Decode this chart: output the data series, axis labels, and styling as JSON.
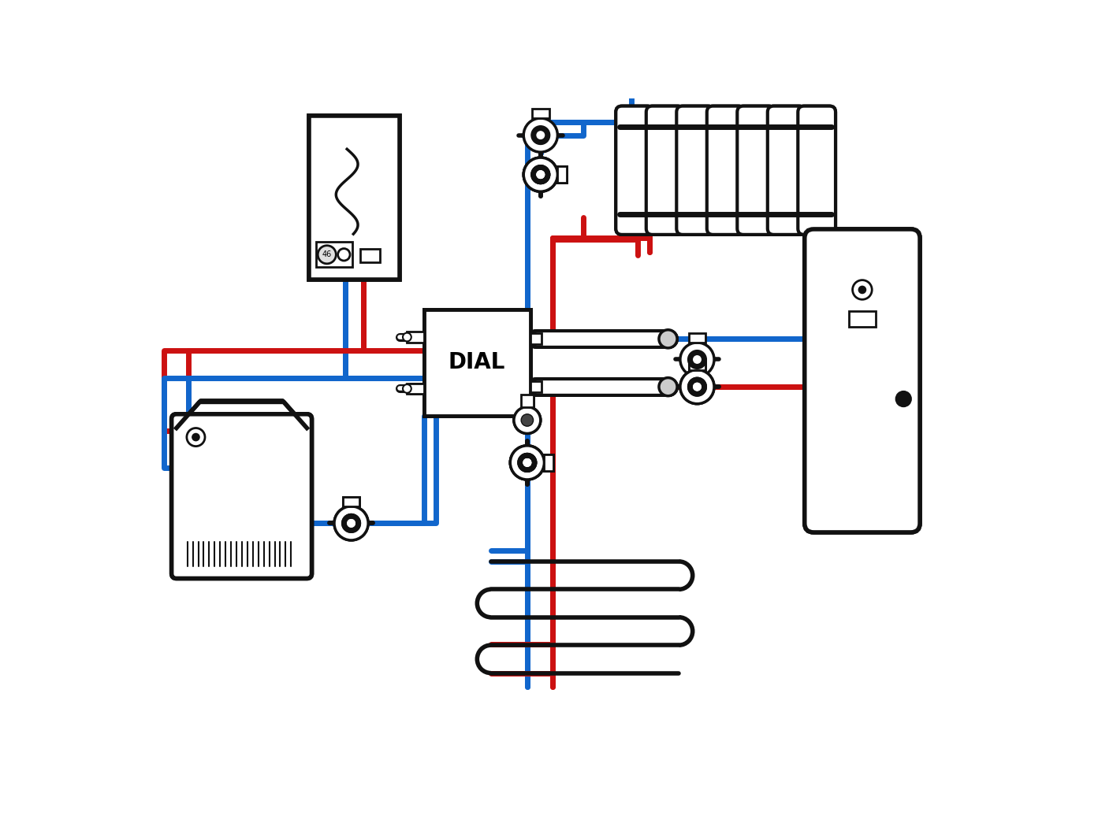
{
  "bg_color": "#ffffff",
  "red": "#cc1111",
  "blue": "#1166cc",
  "black": "#111111",
  "gray": "#888888",
  "lightgray": "#cccccc",
  "lw_pipe": 5,
  "fig_width": 13.93,
  "fig_height": 10.45
}
